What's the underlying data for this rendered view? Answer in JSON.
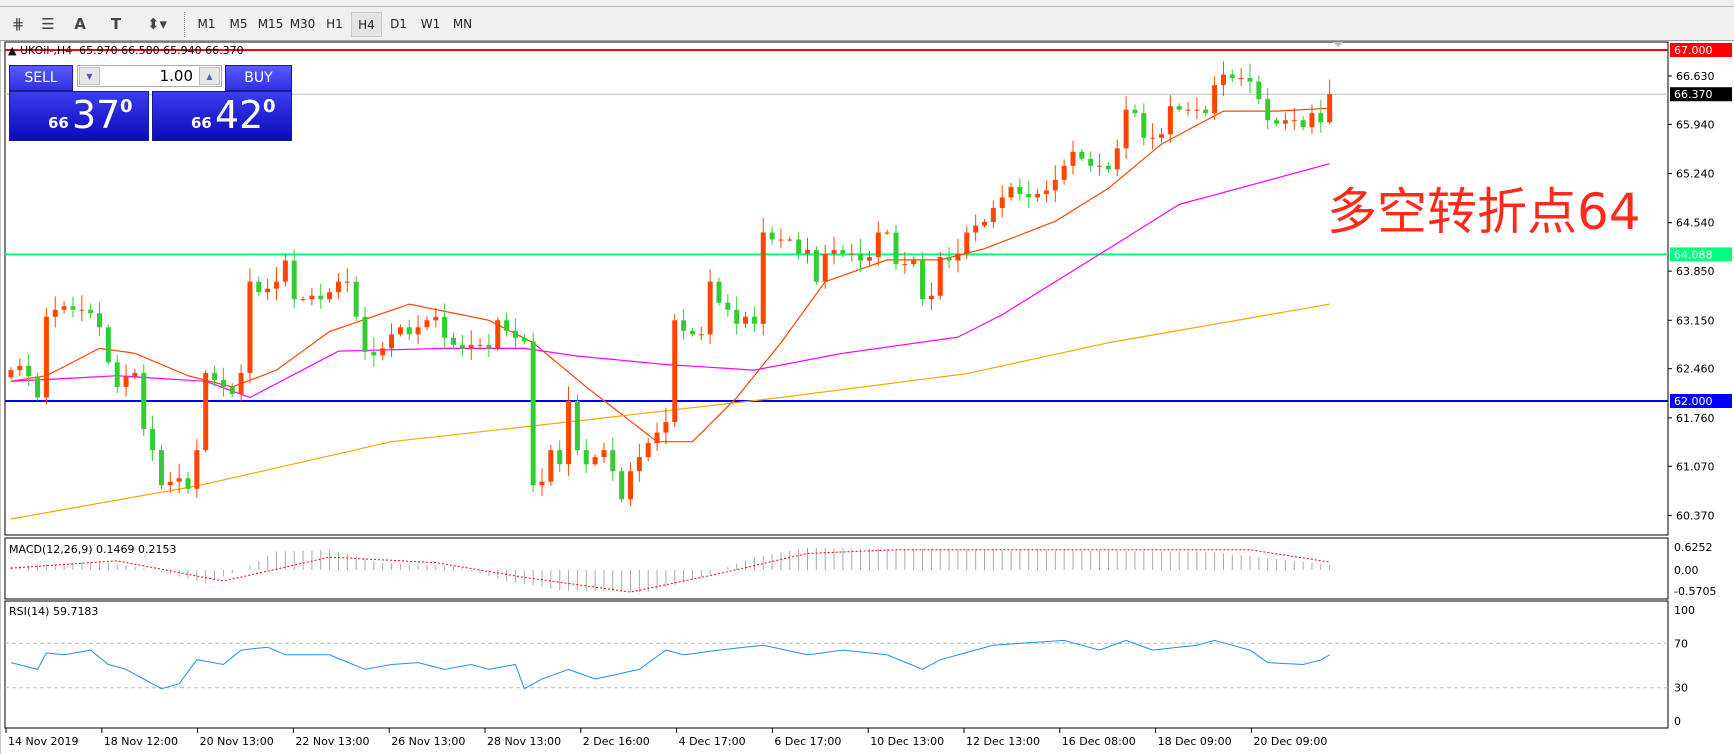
{
  "toolbar": {
    "icons": [
      "fibonacci-expansion-icon",
      "fibonacci-fan-icon",
      "text-icon",
      "text-label-icon",
      "arrows-icon"
    ],
    "timeframes": [
      "M1",
      "M5",
      "M15",
      "M30",
      "H1",
      "H4",
      "D1",
      "W1",
      "MN"
    ],
    "active_timeframe": "H4"
  },
  "header": {
    "symbol": "UKOil-,H4",
    "open": "65.970",
    "high": "66.580",
    "low": "65.940",
    "close": "66.370"
  },
  "trade_panel": {
    "sell_label": "SELL",
    "buy_label": "BUY",
    "lot": "1.00",
    "sell_price": {
      "prefix": "66",
      "big": "37",
      "sup": "0"
    },
    "buy_price": {
      "prefix": "66",
      "big": "42",
      "sup": "0"
    }
  },
  "annotation": {
    "text": "多空转折点64",
    "color": "#ff2a1a"
  },
  "price_axis": {
    "labels": [
      "66.630",
      "65.940",
      "65.240",
      "64.540",
      "63.850",
      "63.150",
      "62.460",
      "61.760",
      "61.070",
      "60.370"
    ],
    "values": [
      66.63,
      65.94,
      65.24,
      64.54,
      63.85,
      63.15,
      62.46,
      61.76,
      61.07,
      60.37
    ]
  },
  "hlines": [
    {
      "label": "67.000",
      "value": 67.0,
      "color": "#ff0000"
    },
    {
      "label": "64.088",
      "value": 64.088,
      "color": "#00ff7f"
    },
    {
      "label": "62.000",
      "value": 62.0,
      "color": "#0000ff"
    },
    {
      "label": "66.370",
      "value": 66.37,
      "color": "#000000",
      "line": "#c0c0c0"
    }
  ],
  "time_axis": [
    "14 Nov 2019",
    "18 Nov 12:00",
    "20 Nov 13:00",
    "22 Nov 13:00",
    "26 Nov 13:00",
    "28 Nov 13:00",
    "2 Dec 16:00",
    "4 Dec 17:00",
    "6 Dec 17:00",
    "10 Dec 13:00",
    "12 Dec 13:00",
    "16 Dec 08:00",
    "18 Dec 09:00",
    "20 Dec 09:00"
  ],
  "chart_data": [
    {
      "type": "candlestick",
      "up_color": "#ff4500",
      "down_color": "#32cd32",
      "ylim": [
        60.3,
        67.0
      ],
      "close": [
        62.44,
        62.5,
        62.35,
        62.05,
        63.2,
        63.3,
        63.35,
        63.3,
        63.3,
        63.25,
        63.05,
        62.55,
        62.2,
        62.35,
        62.4,
        61.6,
        61.3,
        60.8,
        60.85,
        60.9,
        60.75,
        61.3,
        62.4,
        62.3,
        62.2,
        62.1,
        62.4,
        63.7,
        63.55,
        63.6,
        63.7,
        64.0,
        63.45,
        63.45,
        63.5,
        63.45,
        63.55,
        63.7,
        63.7,
        63.2,
        62.7,
        62.65,
        62.75,
        62.95,
        63.05,
        62.95,
        63.05,
        63.15,
        63.2,
        62.9,
        62.8,
        62.75,
        62.8,
        62.8,
        62.75,
        63.15,
        63.0,
        62.9,
        62.85,
        60.8,
        60.85,
        61.3,
        61.1,
        62.0,
        61.3,
        61.1,
        61.2,
        61.3,
        61.0,
        60.6,
        61.0,
        61.2,
        61.4,
        61.55,
        61.7,
        63.15,
        63.0,
        62.95,
        62.95,
        63.7,
        63.4,
        63.3,
        63.1,
        63.2,
        63.1,
        64.4,
        64.3,
        64.3,
        64.3,
        64.1,
        64.15,
        63.7,
        64.1,
        64.15,
        64.1,
        64.1,
        64.0,
        64.05,
        64.4,
        64.4,
        63.95,
        63.95,
        64.0,
        63.45,
        63.5,
        64.05,
        64.0,
        64.1,
        64.4,
        64.5,
        64.55,
        64.75,
        64.9,
        65.05,
        64.95,
        64.9,
        64.95,
        65.0,
        65.15,
        65.35,
        65.55,
        65.45,
        65.35,
        65.35,
        65.3,
        65.6,
        66.15,
        66.1,
        65.75,
        65.75,
        65.8,
        66.2,
        66.15,
        66.15,
        66.15,
        66.1,
        66.5,
        66.65,
        66.6,
        66.6,
        66.55,
        66.3,
        66.0,
        65.95,
        66.0,
        66.0,
        65.9,
        66.1,
        65.97,
        66.37
      ],
      "last_bar": {
        "open": 65.97,
        "high": 66.58,
        "low": 65.94,
        "close": 66.37
      },
      "moving_averages": [
        {
          "color": "#ff4500",
          "points": [
            [
              0,
              62.28
            ],
            [
              4,
              62.36
            ],
            [
              10,
              62.75
            ],
            [
              14,
              62.68
            ],
            [
              20,
              62.36
            ],
            [
              25,
              62.2
            ],
            [
              30,
              62.44
            ],
            [
              36,
              62.99
            ],
            [
              45,
              63.38
            ],
            [
              54,
              63.15
            ],
            [
              59,
              62.83
            ],
            [
              65,
              62.2
            ],
            [
              73,
              61.42
            ],
            [
              77,
              61.42
            ],
            [
              82,
              62.05
            ],
            [
              87,
              62.83
            ],
            [
              92,
              63.7
            ],
            [
              99,
              64.01
            ],
            [
              105,
              64.01
            ],
            [
              110,
              64.17
            ],
            [
              118,
              64.56
            ],
            [
              124,
              65.03
            ],
            [
              130,
              65.66
            ],
            [
              137,
              66.13
            ],
            [
              143,
              66.13
            ],
            [
              149,
              66.17
            ]
          ]
        },
        {
          "color": "#ff00ff",
          "points": [
            [
              0,
              62.28
            ],
            [
              12,
              62.36
            ],
            [
              22,
              62.28
            ],
            [
              27,
              62.05
            ],
            [
              37,
              62.71
            ],
            [
              49,
              62.75
            ],
            [
              58,
              62.75
            ],
            [
              64,
              62.64
            ],
            [
              74,
              62.52
            ],
            [
              84,
              62.44
            ],
            [
              94,
              62.68
            ],
            [
              107,
              62.91
            ],
            [
              112,
              63.23
            ],
            [
              123,
              64.09
            ],
            [
              132,
              64.8
            ],
            [
              149,
              65.38
            ]
          ]
        },
        {
          "color": "#ffa500",
          "points": [
            [
              0,
              60.32
            ],
            [
              21,
              60.79
            ],
            [
              43,
              61.42
            ],
            [
              65,
              61.73
            ],
            [
              87,
              62.05
            ],
            [
              108,
              62.39
            ],
            [
              124,
              62.83
            ],
            [
              149,
              63.38
            ]
          ]
        }
      ]
    },
    {
      "type": "bar+line",
      "title": "MACD(12,26,9)",
      "main_value": "0.1469",
      "signal_value": "0.2153",
      "axis_labels": [
        "0.6252",
        "0.00",
        "-0.5705"
      ],
      "axis_values": [
        0.6252,
        0,
        -0.5705
      ],
      "histogram_color": "#a9a9a9",
      "signal_color": "#ff0000",
      "histogram_points": [
        [
          0,
          0.1
        ],
        [
          10,
          0.25
        ],
        [
          16,
          0.0
        ],
        [
          22,
          -0.35
        ],
        [
          26,
          0.0
        ],
        [
          30,
          0.5
        ],
        [
          36,
          0.55
        ],
        [
          42,
          0.2
        ],
        [
          50,
          0.1
        ],
        [
          56,
          -0.3
        ],
        [
          62,
          -0.55
        ],
        [
          72,
          -0.6
        ],
        [
          78,
          -0.2
        ],
        [
          84,
          0.35
        ],
        [
          90,
          0.6
        ],
        [
          110,
          0.55
        ],
        [
          135,
          0.5
        ],
        [
          149,
          0.1469
        ]
      ],
      "signal_points": [
        [
          0,
          0.05
        ],
        [
          12,
          0.25
        ],
        [
          24,
          -0.3
        ],
        [
          36,
          0.35
        ],
        [
          48,
          0.2
        ],
        [
          58,
          -0.2
        ],
        [
          70,
          -0.6
        ],
        [
          80,
          -0.1
        ],
        [
          90,
          0.45
        ],
        [
          100,
          0.55
        ],
        [
          140,
          0.55
        ],
        [
          149,
          0.2153
        ]
      ]
    },
    {
      "type": "line",
      "title": "RSI(14)",
      "value": "59.7183",
      "ylim": [
        0,
        100
      ],
      "levels": [
        70,
        30
      ],
      "axis_labels": [
        "100",
        "70",
        "30",
        "0"
      ],
      "axis_values": [
        100,
        70,
        30,
        0
      ],
      "color": "#1e90ff",
      "points": [
        [
          0,
          52.6
        ],
        [
          3,
          46.5
        ],
        [
          4,
          61.3
        ],
        [
          6,
          59.6
        ],
        [
          9,
          63.9
        ],
        [
          11,
          50.9
        ],
        [
          13,
          46.5
        ],
        [
          15,
          37.8
        ],
        [
          17,
          29.1
        ],
        [
          19,
          33.5
        ],
        [
          21,
          55.2
        ],
        [
          24,
          50.9
        ],
        [
          26,
          63.9
        ],
        [
          29,
          66.5
        ],
        [
          31,
          59.6
        ],
        [
          36,
          59.6
        ],
        [
          40,
          46.5
        ],
        [
          43,
          50.9
        ],
        [
          46,
          52.6
        ],
        [
          49,
          46.5
        ],
        [
          52,
          50.9
        ],
        [
          54,
          46.5
        ],
        [
          57,
          50.9
        ],
        [
          58,
          29.1
        ],
        [
          60,
          37.8
        ],
        [
          63,
          46.5
        ],
        [
          66,
          37.8
        ],
        [
          71,
          46.5
        ],
        [
          74,
          63.9
        ],
        [
          76,
          59.6
        ],
        [
          80,
          63.9
        ],
        [
          85,
          68.3
        ],
        [
          90,
          59.6
        ],
        [
          94,
          63.9
        ],
        [
          99,
          59.6
        ],
        [
          103,
          46.5
        ],
        [
          105,
          55.2
        ],
        [
          111,
          68.3
        ],
        [
          119,
          72.6
        ],
        [
          123,
          63.9
        ],
        [
          126,
          72.6
        ],
        [
          129,
          63.9
        ],
        [
          134,
          68.3
        ],
        [
          136,
          72.6
        ],
        [
          140,
          63.9
        ],
        [
          142,
          52.6
        ],
        [
          146,
          50.9
        ],
        [
          148,
          55
        ],
        [
          149,
          59.7183
        ]
      ]
    }
  ]
}
